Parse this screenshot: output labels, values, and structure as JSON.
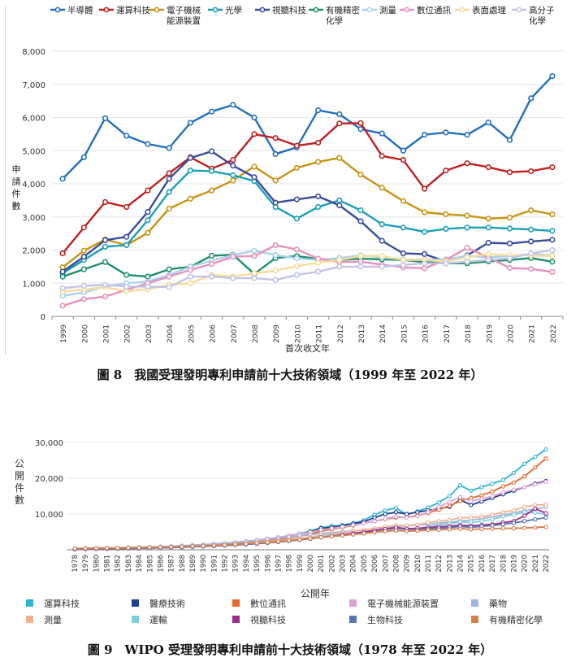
{
  "captions": {
    "fig8": "圖 8　我國受理發明專利申請前十大技術領域（1999 年至 2022 年）",
    "fig9": "圖 9　WIPO 受理發明專利申請前十大技術領域（1978 年至 2022 年）"
  },
  "chart_data": [
    {
      "type": "line",
      "title": "",
      "xlabel": "首次收文年",
      "ylabel": "申請件數",
      "x": [
        "1999",
        "2000",
        "2001",
        "2002",
        "2003",
        "2004",
        "2005",
        "2006",
        "2007",
        "2008",
        "2009",
        "2010",
        "2011",
        "2012",
        "2013",
        "2014",
        "2015",
        "2016",
        "2017",
        "2018",
        "2019",
        "2020",
        "2021",
        "2022"
      ],
      "ylim": [
        0,
        8000
      ],
      "yticks": [
        "0",
        "1,000",
        "2,000",
        "3,000",
        "4,000",
        "5,000",
        "6,000",
        "7,000",
        "8,000"
      ],
      "legend": "top",
      "series": [
        {
          "name": "半導體",
          "color": "#1f6fbf",
          "values": [
            4150,
            4800,
            5980,
            5450,
            5200,
            5080,
            5840,
            6180,
            6380,
            6000,
            4900,
            5100,
            6220,
            6100,
            5650,
            5520,
            5000,
            5480,
            5550,
            5480,
            5850,
            5320,
            6580,
            7250
          ]
        },
        {
          "name": "運算科技",
          "color": "#c01f1f",
          "values": [
            1900,
            2680,
            3450,
            3300,
            3800,
            4320,
            4800,
            4460,
            4720,
            5500,
            5380,
            5150,
            5240,
            5820,
            5830,
            4840,
            4720,
            3850,
            4400,
            4620,
            4500,
            4350,
            4380,
            4500
          ]
        },
        {
          "name": "電子機械\n能源裝置",
          "color": "#c79412",
          "values": [
            1480,
            1980,
            2320,
            2150,
            2520,
            3250,
            3550,
            3800,
            4100,
            4520,
            4100,
            4480,
            4660,
            4780,
            4280,
            3880,
            3480,
            3140,
            3080,
            3040,
            2950,
            2980,
            3200,
            3080
          ]
        },
        {
          "name": "光學",
          "color": "#1a9fb8",
          "values": [
            1300,
            1700,
            2100,
            2150,
            2900,
            3750,
            4400,
            4380,
            4260,
            4080,
            3300,
            2950,
            3300,
            3500,
            3200,
            2780,
            2680,
            2550,
            2640,
            2680,
            2680,
            2650,
            2620,
            2580
          ]
        },
        {
          "name": "視聽科技",
          "color": "#3a4c9c",
          "values": [
            1350,
            1800,
            2300,
            2400,
            3150,
            4150,
            4780,
            4980,
            4550,
            4200,
            3430,
            3530,
            3620,
            3350,
            2870,
            2280,
            1900,
            1880,
            1650,
            1840,
            2220,
            2200,
            2260,
            2310
          ]
        },
        {
          "name": "有機精密\n化學",
          "color": "#1c8f6c",
          "values": [
            1200,
            1420,
            1640,
            1250,
            1200,
            1420,
            1500,
            1830,
            1860,
            1280,
            1760,
            1820,
            1730,
            1700,
            1740,
            1720,
            1700,
            1640,
            1600,
            1600,
            1660,
            1700,
            1760,
            1650
          ]
        },
        {
          "name": "測量",
          "color": "#a9d2ee",
          "values": [
            620,
            720,
            900,
            1000,
            1050,
            1250,
            1500,
            1680,
            1850,
            1980,
            1850,
            1750,
            1700,
            1760,
            1840,
            1780,
            1720,
            1710,
            1720,
            1820,
            1780,
            1820,
            1880,
            1840
          ]
        },
        {
          "name": "數位通訊",
          "color": "#e592bd",
          "values": [
            320,
            520,
            600,
            800,
            1000,
            1200,
            1400,
            1580,
            1800,
            1820,
            2150,
            2020,
            1740,
            1640,
            1650,
            1560,
            1480,
            1450,
            1700,
            2070,
            1780,
            1460,
            1430,
            1340
          ]
        },
        {
          "name": "表面處理",
          "color": "#f6dc9a",
          "values": [
            740,
            810,
            880,
            760,
            820,
            950,
            1000,
            1250,
            1200,
            1300,
            1380,
            1520,
            1620,
            1700,
            1820,
            1820,
            1700,
            1700,
            1660,
            1780,
            1880,
            1840,
            1840,
            1820
          ]
        },
        {
          "name": "高分子\n化學",
          "color": "#c2c3e8",
          "values": [
            850,
            920,
            950,
            900,
            900,
            880,
            1200,
            1200,
            1150,
            1150,
            1100,
            1250,
            1350,
            1500,
            1500,
            1500,
            1550,
            1600,
            1600,
            1650,
            1700,
            1750,
            1900,
            2000
          ]
        }
      ]
    },
    {
      "type": "line",
      "title": "",
      "xlabel": "公開年",
      "ylabel": "公開件數",
      "x": [
        "1978",
        "1979",
        "1980",
        "1981",
        "1982",
        "1983",
        "1984",
        "1985",
        "1986",
        "1987",
        "1988",
        "1989",
        "1990",
        "1991",
        "1992",
        "1993",
        "1994",
        "1995",
        "1996",
        "1997",
        "1998",
        "1999",
        "2000",
        "2001",
        "2002",
        "2003",
        "2004",
        "2005",
        "2006",
        "2007",
        "2008",
        "2009",
        "2010",
        "2011",
        "2012",
        "2013",
        "2014",
        "2015",
        "2016",
        "2017",
        "2018",
        "2019",
        "2020",
        "2021",
        "2022"
      ],
      "ylim": [
        0,
        30000
      ],
      "yticks": [
        "10,000",
        "20,000",
        "30,000"
      ],
      "legend": "bottom",
      "series": [
        {
          "name": "運算科技",
          "color": "#2bb4d0",
          "values": [
            150,
            200,
            250,
            300,
            350,
            400,
            450,
            550,
            650,
            800,
            950,
            1100,
            1250,
            1450,
            1700,
            1900,
            2200,
            2550,
            2950,
            3400,
            3900,
            4500,
            5200,
            6200,
            6600,
            6900,
            7400,
            8200,
            9800,
            11000,
            11700,
            9800,
            10700,
            11800,
            13200,
            15000,
            18000,
            16500,
            17500,
            18500,
            19500,
            21500,
            24000,
            26000,
            28000
          ]
        },
        {
          "name": "醫療技術",
          "color": "#1f3f8f",
          "values": [
            200,
            250,
            300,
            350,
            400,
            450,
            500,
            600,
            700,
            850,
            1000,
            1150,
            1300,
            1500,
            1750,
            2000,
            2300,
            2600,
            3000,
            3400,
            3900,
            4400,
            5000,
            6000,
            6300,
            6700,
            7300,
            7800,
            9000,
            10000,
            10500,
            10000,
            10500,
            11000,
            11500,
            12000,
            14000,
            12500,
            13500,
            14500,
            15500,
            16500,
            17500,
            18500,
            19200
          ]
        },
        {
          "name": "數位通訊",
          "color": "#e8682a",
          "values": [
            150,
            180,
            220,
            260,
            300,
            350,
            400,
            480,
            560,
            650,
            750,
            880,
            1000,
            1150,
            1350,
            1550,
            1800,
            2100,
            2450,
            2850,
            3300,
            3800,
            4400,
            5200,
            5700,
            6300,
            6800,
            7400,
            8000,
            8600,
            9000,
            9100,
            9600,
            10300,
            11200,
            12300,
            13600,
            14500,
            15200,
            16300,
            17700,
            18800,
            20500,
            23000,
            25500
          ]
        },
        {
          "name": "電子機械能源裝置",
          "color": "#d9a3d4",
          "values": [
            300,
            350,
            400,
            450,
            500,
            550,
            600,
            700,
            800,
            950,
            1100,
            1250,
            1400,
            1600,
            1850,
            2100,
            2400,
            2700,
            3100,
            3500,
            3950,
            4400,
            4900,
            5600,
            6000,
            6400,
            6900,
            7400,
            8000,
            8700,
            9200,
            9000,
            9400,
            10500,
            12000,
            13400,
            14700,
            13600,
            14200,
            15000,
            16000,
            16800,
            17500,
            18300,
            19000
          ]
        },
        {
          "name": "藥物",
          "color": "#9fb4de",
          "values": [
            400,
            450,
            500,
            550,
            600,
            650,
            700,
            800,
            900,
            1000,
            1150,
            1300,
            1450,
            1650,
            1850,
            2050,
            2300,
            2550,
            2850,
            3150,
            3500,
            3850,
            4200,
            4600,
            4800,
            5000,
            5300,
            5600,
            5900,
            6200,
            6500,
            6700,
            6900,
            7100,
            7400,
            7700,
            8000,
            8300,
            8700,
            9200,
            9700,
            10300,
            10900,
            11400,
            11900
          ]
        },
        {
          "name": "測量",
          "color": "#f0b291",
          "values": [
            300,
            330,
            370,
            410,
            450,
            500,
            550,
            620,
            700,
            790,
            890,
            1000,
            1120,
            1260,
            1420,
            1600,
            1800,
            2020,
            2270,
            2550,
            2850,
            3200,
            3550,
            4100,
            4400,
            4800,
            5200,
            5600,
            6000,
            6400,
            6800,
            6800,
            7000,
            7600,
            8000,
            8300,
            8900,
            9000,
            9200,
            9800,
            10500,
            11000,
            12000,
            12500,
            12600
          ]
        },
        {
          "name": "運輸",
          "color": "#7ecfdc",
          "values": [
            250,
            280,
            310,
            350,
            390,
            430,
            480,
            540,
            610,
            690,
            780,
            880,
            990,
            1110,
            1250,
            1400,
            1580,
            1780,
            2000,
            2250,
            2550,
            2850,
            3200,
            3700,
            4000,
            4300,
            4600,
            4900,
            5200,
            5500,
            5800,
            5600,
            5900,
            6400,
            6900,
            7300,
            7800,
            7600,
            8000,
            8500,
            9300,
            9800,
            10500,
            10400,
            9800
          ]
        },
        {
          "name": "視聽科技",
          "color": "#9e2b8a",
          "values": [
            200,
            230,
            260,
            300,
            340,
            380,
            430,
            490,
            560,
            640,
            730,
            830,
            940,
            1060,
            1200,
            1350,
            1520,
            1710,
            1930,
            2180,
            2460,
            2770,
            3100,
            3500,
            3800,
            4200,
            4600,
            5000,
            5400,
            5800,
            6200,
            5900,
            6000,
            6200,
            6400,
            6600,
            6900,
            6700,
            6900,
            7100,
            7600,
            8000,
            9500,
            11500,
            10200
          ]
        },
        {
          "name": "生物科技",
          "color": "#5874b2",
          "values": [
            200,
            230,
            260,
            300,
            340,
            380,
            430,
            490,
            560,
            640,
            730,
            830,
            940,
            1060,
            1200,
            1350,
            1520,
            1710,
            1930,
            2180,
            2460,
            2770,
            3100,
            3500,
            3750,
            4000,
            4300,
            4600,
            4900,
            5200,
            5400,
            5300,
            5500,
            5800,
            6000,
            6200,
            6500,
            6300,
            6500,
            6800,
            7100,
            7500,
            8000,
            8500,
            9000
          ]
        },
        {
          "name": "有機精密化學",
          "color": "#d87d4c",
          "values": [
            350,
            380,
            410,
            450,
            490,
            530,
            580,
            640,
            710,
            790,
            880,
            980,
            1090,
            1210,
            1350,
            1500,
            1670,
            1860,
            2070,
            2300,
            2560,
            2840,
            3150,
            3500,
            3750,
            4000,
            4300,
            4600,
            4900,
            5200,
            5400,
            5200,
            5300,
            5500,
            5600,
            5700,
            5900,
            5700,
            5800,
            5900,
            6000,
            6000,
            6100,
            6200,
            6400
          ]
        }
      ]
    }
  ]
}
